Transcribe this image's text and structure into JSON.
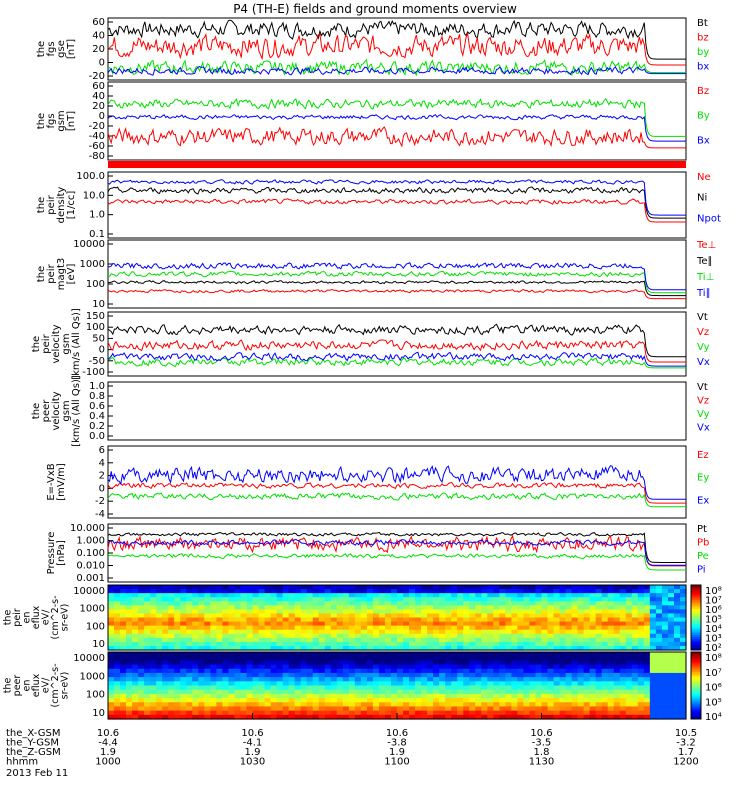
{
  "title": "P4 (TH-E) fields and ground moments overview",
  "date": "2013 Feb 11",
  "colors": {
    "black": "#000000",
    "red": "#ff0000",
    "green": "#00e000",
    "blue": "#0000ff",
    "band": "#ff0000"
  },
  "panels": [
    {
      "ylabel": [
        "the",
        "fgs",
        "gse",
        "[nT]"
      ],
      "ticks": [
        "60",
        "40",
        "20",
        "0",
        "-20"
      ],
      "series": [
        {
          "name": "Bt",
          "color": "black",
          "base": 0.82,
          "amp": 0.18
        },
        {
          "name": "bz",
          "color": "red",
          "base": 0.55,
          "amp": 0.25
        },
        {
          "name": "by",
          "color": "green",
          "base": 0.2,
          "amp": 0.15
        },
        {
          "name": "bx",
          "color": "blue",
          "base": 0.15,
          "amp": 0.08
        }
      ]
    },
    {
      "ylabel": [
        "the",
        "fgs",
        "gsm",
        "[nT]"
      ],
      "ticks": [
        "60",
        "40",
        "20",
        "0",
        "-20",
        "-40",
        "-60",
        "-80"
      ],
      "series": [
        {
          "name": "Bz",
          "color": "red",
          "base": 0.3,
          "amp": 0.15
        },
        {
          "name": "By",
          "color": "green",
          "base": 0.72,
          "amp": 0.08
        },
        {
          "name": "Bx",
          "color": "blue",
          "base": 0.55,
          "amp": 0.04
        }
      ]
    },
    {
      "ylabel": [
        "the",
        "peir",
        "density",
        "[1/cc]"
      ],
      "ticks": [
        "100.0",
        "10.0",
        "1.0",
        "0.1"
      ],
      "series": [
        {
          "name": "Ne",
          "color": "red",
          "base": 0.55,
          "amp": 0.05
        },
        {
          "name": "Ni",
          "color": "black",
          "base": 0.72,
          "amp": 0.06
        },
        {
          "name": "Npot",
          "color": "blue",
          "base": 0.85,
          "amp": 0.04
        }
      ]
    },
    {
      "ylabel": [
        "the",
        "peir",
        "magt3",
        "[eV]"
      ],
      "ticks": [
        "10000",
        "1000",
        "100",
        "10"
      ],
      "series": [
        {
          "name": "Te⊥",
          "color": "red",
          "base": 0.25,
          "amp": 0.03
        },
        {
          "name": "Te∥",
          "color": "black",
          "base": 0.38,
          "amp": 0.03
        },
        {
          "name": "Ti⊥",
          "color": "green",
          "base": 0.5,
          "amp": 0.05
        },
        {
          "name": "Ti∥",
          "color": "blue",
          "base": 0.62,
          "amp": 0.06
        }
      ]
    },
    {
      "ylabel": [
        "the",
        "peir",
        "velocity",
        "gsm",
        "[km/s (All Qs)]"
      ],
      "ticks": [
        "150",
        "100",
        "50",
        "0",
        "-50",
        "-100"
      ],
      "series": [
        {
          "name": "Vt",
          "color": "black",
          "base": 0.72,
          "amp": 0.1
        },
        {
          "name": "Vz",
          "color": "red",
          "base": 0.48,
          "amp": 0.1
        },
        {
          "name": "Vy",
          "color": "green",
          "base": 0.22,
          "amp": 0.08
        },
        {
          "name": "Vx",
          "color": "blue",
          "base": 0.3,
          "amp": 0.08
        }
      ]
    },
    {
      "ylabel": [
        "the",
        "peer",
        "velocity",
        "gsm",
        "[km/s (All Qs)]"
      ],
      "ticks": [
        "1.0",
        "0.8",
        "0.6",
        "0.4",
        "0.2",
        "0.0"
      ],
      "series": [
        {
          "name": "Vt",
          "color": "black"
        },
        {
          "name": "Vz",
          "color": "red"
        },
        {
          "name": "Vy",
          "color": "green"
        },
        {
          "name": "Vx",
          "color": "blue"
        }
      ]
    },
    {
      "ylabel": [
        "E=-VxB",
        "[mV/m]"
      ],
      "ticks": [
        "6",
        "4",
        "2",
        "0",
        "-2",
        "-4"
      ],
      "series": [
        {
          "name": "Ez",
          "color": "red",
          "base": 0.45,
          "amp": 0.05
        },
        {
          "name": "Ey",
          "color": "green",
          "base": 0.3,
          "amp": 0.06
        },
        {
          "name": "Ex",
          "color": "blue",
          "base": 0.6,
          "amp": 0.15
        }
      ]
    },
    {
      "ylabel": [
        "Pressure",
        "[nPa]"
      ],
      "ticks": [
        "10.000",
        "1.000",
        "0.100",
        "0.010",
        "0.001"
      ],
      "series": [
        {
          "name": "Pt",
          "color": "black",
          "base": 0.82,
          "amp": 0.04
        },
        {
          "name": "Pb",
          "color": "red",
          "base": 0.65,
          "amp": 0.18
        },
        {
          "name": "Pe",
          "color": "green",
          "base": 0.45,
          "amp": 0.05
        },
        {
          "name": "Pi",
          "color": "blue",
          "base": 0.68,
          "amp": 0.06
        }
      ]
    }
  ],
  "spectra": [
    {
      "ylabel": [
        "the",
        "peir",
        "en",
        "eflux",
        "eV/",
        "(cm^2-s-",
        "sr-eV)"
      ],
      "ticks": [
        "10000",
        "1000",
        "100",
        "10"
      ],
      "cbar": [
        "10⁸",
        "10⁷",
        "10⁶",
        "10⁵",
        "10⁴",
        "10³",
        "10²"
      ]
    },
    {
      "ylabel": [
        "the",
        "peer",
        "en",
        "eflux",
        "eV/",
        "(cm^2-s-",
        "sr-eV)"
      ],
      "ticks": [
        "10000",
        "1000",
        "100",
        "10"
      ],
      "cbar": [
        "10⁸",
        "10⁷",
        "10⁶",
        "10⁵",
        "10⁴"
      ]
    }
  ],
  "xaxis": {
    "rows": [
      {
        "label": "the_X-GSM",
        "values": [
          "10.6",
          "10.6",
          "10.6",
          "10.6",
          "10.5"
        ]
      },
      {
        "label": "the_Y-GSM",
        "values": [
          "-4.4",
          "-4.1",
          "-3.8",
          "-3.5",
          "-3.2"
        ]
      },
      {
        "label": "the_Z-GSM",
        "values": [
          "1.9",
          "1.9",
          "1.9",
          "1.8",
          "1.7"
        ]
      },
      {
        "label": "hhmm",
        "values": [
          "1000",
          "1030",
          "1100",
          "1130",
          "1200"
        ]
      }
    ]
  }
}
